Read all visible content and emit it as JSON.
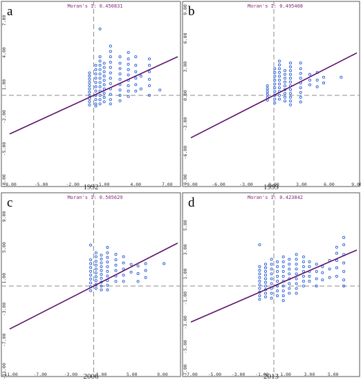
{
  "chart_data": [
    {
      "type": "scatter",
      "panel_label": "a",
      "moran_label": "Moran's I: 0.450831",
      "year": "1992",
      "x_ticks": [
        "-8.00",
        "-5.00",
        "-2.00",
        "1.00",
        "4.00",
        "7.00"
      ],
      "y_ticks": [
        "7.00",
        "4.00",
        "1.00",
        "-2.00",
        "-5.00",
        "-8.00"
      ],
      "xlim": [
        -8,
        8
      ],
      "ylim": [
        -8,
        8
      ],
      "slope": 0.450831,
      "grid": false,
      "points": [
        [
          -0.4,
          1.8
        ],
        [
          -0.4,
          1.5
        ],
        [
          -0.4,
          1.2
        ],
        [
          -0.4,
          0.9
        ],
        [
          -0.4,
          0.6
        ],
        [
          -0.4,
          0.3
        ],
        [
          -0.4,
          0.0
        ],
        [
          -0.4,
          -0.3
        ],
        [
          -0.4,
          -0.6
        ],
        [
          -0.4,
          2.1
        ],
        [
          -0.4,
          -0.9
        ],
        [
          0.2,
          2.8
        ],
        [
          0.2,
          2.4
        ],
        [
          0.2,
          2.0
        ],
        [
          0.2,
          1.6
        ],
        [
          0.2,
          1.2
        ],
        [
          0.2,
          0.8
        ],
        [
          0.2,
          0.4
        ],
        [
          0.2,
          0.0
        ],
        [
          0.2,
          -0.4
        ],
        [
          0.2,
          -0.8
        ],
        [
          0.2,
          -1.0
        ],
        [
          0.6,
          6.2
        ],
        [
          0.6,
          3.6
        ],
        [
          0.6,
          3.2
        ],
        [
          0.6,
          2.8
        ],
        [
          0.6,
          2.4
        ],
        [
          0.6,
          2.0
        ],
        [
          0.6,
          1.6
        ],
        [
          0.6,
          1.2
        ],
        [
          0.6,
          0.8
        ],
        [
          0.6,
          0.4
        ],
        [
          0.6,
          0.0
        ],
        [
          0.6,
          -0.4
        ],
        [
          0.6,
          -0.8
        ],
        [
          1.0,
          3.0
        ],
        [
          1.0,
          2.6
        ],
        [
          1.0,
          2.2
        ],
        [
          1.0,
          1.8
        ],
        [
          1.0,
          1.4
        ],
        [
          1.0,
          1.0
        ],
        [
          1.0,
          0.6
        ],
        [
          1.0,
          0.2
        ],
        [
          1.0,
          -0.2
        ],
        [
          1.0,
          -0.6
        ],
        [
          1.6,
          4.6
        ],
        [
          1.6,
          4.1
        ],
        [
          1.6,
          3.6
        ],
        [
          1.6,
          3.1
        ],
        [
          1.6,
          2.6
        ],
        [
          1.6,
          2.1
        ],
        [
          1.6,
          1.6
        ],
        [
          1.6,
          1.1
        ],
        [
          1.6,
          0.6
        ],
        [
          1.6,
          0.1
        ],
        [
          1.6,
          -0.4
        ],
        [
          1.6,
          -0.8
        ],
        [
          2.5,
          3.6
        ],
        [
          2.5,
          3.0
        ],
        [
          2.5,
          2.5
        ],
        [
          2.5,
          2.0
        ],
        [
          2.5,
          1.5
        ],
        [
          2.5,
          1.0
        ],
        [
          2.5,
          0.5
        ],
        [
          2.5,
          0.0
        ],
        [
          2.5,
          -0.5
        ],
        [
          3.3,
          4.0
        ],
        [
          3.3,
          3.4
        ],
        [
          3.3,
          2.9
        ],
        [
          3.3,
          2.4
        ],
        [
          3.3,
          1.9
        ],
        [
          3.3,
          1.4
        ],
        [
          3.3,
          0.9
        ],
        [
          3.3,
          0.4
        ],
        [
          3.3,
          -0.1
        ],
        [
          4.0,
          3.6
        ],
        [
          4.0,
          2.8
        ],
        [
          4.0,
          2.2
        ],
        [
          4.0,
          1.6
        ],
        [
          4.0,
          1.0
        ],
        [
          4.0,
          0.4
        ],
        [
          4.5,
          1.8
        ],
        [
          4.5,
          0.6
        ],
        [
          5.3,
          3.4
        ],
        [
          5.3,
          2.8
        ],
        [
          5.3,
          2.2
        ],
        [
          5.3,
          1.5
        ],
        [
          5.3,
          0.0
        ],
        [
          5.3,
          0.9
        ],
        [
          6.3,
          0.5
        ]
      ]
    },
    {
      "type": "scatter",
      "panel_label": "b",
      "moran_label": "Moran's I: 0.495408",
      "year": "1999",
      "x_ticks": [
        "-9.00",
        "-6.00",
        "-3.00",
        "0.00",
        "3.00",
        "6.00",
        "9.00"
      ],
      "y_ticks": [
        "9.00",
        "6.00",
        "3.00",
        "0.00",
        "-3.00",
        "-6.00",
        "-9.00"
      ],
      "xlim": [
        -9,
        9
      ],
      "ylim": [
        -9,
        9
      ],
      "slope": 0.495408,
      "grid": false,
      "points": [
        [
          -0.7,
          1.0
        ],
        [
          -0.7,
          0.7
        ],
        [
          -0.7,
          0.4
        ],
        [
          -0.7,
          0.1
        ],
        [
          -0.7,
          -0.2
        ],
        [
          -0.7,
          -0.5
        ],
        [
          0.1,
          2.8
        ],
        [
          0.1,
          2.4
        ],
        [
          0.1,
          2.0
        ],
        [
          0.1,
          1.6
        ],
        [
          0.1,
          1.2
        ],
        [
          0.1,
          0.8
        ],
        [
          0.1,
          0.4
        ],
        [
          0.1,
          0.0
        ],
        [
          0.1,
          -0.4
        ],
        [
          0.1,
          -0.8
        ],
        [
          0.6,
          3.6
        ],
        [
          0.6,
          3.2
        ],
        [
          0.6,
          2.8
        ],
        [
          0.6,
          2.4
        ],
        [
          0.6,
          2.0
        ],
        [
          0.6,
          1.6
        ],
        [
          0.6,
          1.2
        ],
        [
          0.6,
          0.8
        ],
        [
          0.6,
          0.4
        ],
        [
          0.6,
          0.0
        ],
        [
          0.6,
          -0.4
        ],
        [
          1.2,
          2.6
        ],
        [
          1.2,
          2.2
        ],
        [
          1.2,
          1.8
        ],
        [
          1.2,
          1.4
        ],
        [
          1.2,
          1.0
        ],
        [
          1.2,
          0.6
        ],
        [
          1.2,
          0.2
        ],
        [
          1.2,
          -0.2
        ],
        [
          1.2,
          -0.6
        ],
        [
          1.8,
          3.4
        ],
        [
          1.8,
          3.0
        ],
        [
          1.8,
          2.6
        ],
        [
          1.8,
          2.2
        ],
        [
          1.8,
          1.8
        ],
        [
          1.8,
          1.4
        ],
        [
          1.8,
          1.0
        ],
        [
          1.8,
          0.6
        ],
        [
          1.8,
          0.2
        ],
        [
          1.8,
          -0.2
        ],
        [
          1.8,
          -0.6
        ],
        [
          1.8,
          -1.0
        ],
        [
          2.9,
          3.4
        ],
        [
          2.9,
          2.8
        ],
        [
          2.9,
          2.3
        ],
        [
          2.9,
          1.8
        ],
        [
          2.9,
          1.3
        ],
        [
          2.9,
          0.8
        ],
        [
          2.9,
          0.3
        ],
        [
          2.9,
          -0.2
        ],
        [
          2.9,
          -0.7
        ],
        [
          3.9,
          2.2
        ],
        [
          3.9,
          1.6
        ],
        [
          3.9,
          1.1
        ],
        [
          4.7,
          2.4
        ],
        [
          4.7,
          1.6
        ],
        [
          4.7,
          0.9
        ],
        [
          5.4,
          1.9
        ],
        [
          5.4,
          1.3
        ],
        [
          7.3,
          1.9
        ]
      ]
    },
    {
      "type": "scatter",
      "panel_label": "c",
      "moran_label": "Moran's I: 0.505629",
      "year": "2006",
      "x_ticks": [
        "-11.00",
        "-7.00",
        "-3.00",
        "1.00",
        "5.00",
        "9.00"
      ],
      "y_ticks": [
        "9.00",
        "5.00",
        "1.00",
        "-3.00",
        "-7.00",
        "-11.00"
      ],
      "xlim": [
        -11,
        11
      ],
      "ylim": [
        -11,
        11
      ],
      "slope": 0.505629,
      "grid": false,
      "points": [
        [
          -0.4,
          5.3
        ],
        [
          -0.4,
          3.4
        ],
        [
          -0.4,
          2.9
        ],
        [
          -0.4,
          2.4
        ],
        [
          -0.4,
          1.9
        ],
        [
          -0.4,
          1.4
        ],
        [
          -0.4,
          0.9
        ],
        [
          -0.4,
          0.4
        ],
        [
          -0.4,
          -0.1
        ],
        [
          -0.4,
          -0.6
        ],
        [
          0.3,
          4.3
        ],
        [
          0.3,
          3.8
        ],
        [
          0.3,
          3.2
        ],
        [
          0.3,
          2.7
        ],
        [
          0.3,
          2.2
        ],
        [
          0.3,
          1.7
        ],
        [
          0.3,
          1.2
        ],
        [
          0.3,
          0.7
        ],
        [
          0.3,
          0.2
        ],
        [
          0.3,
          -0.3
        ],
        [
          1.0,
          4.0
        ],
        [
          1.0,
          3.5
        ],
        [
          1.0,
          3.0
        ],
        [
          1.0,
          2.5
        ],
        [
          1.0,
          2.0
        ],
        [
          1.0,
          1.5
        ],
        [
          1.0,
          1.0
        ],
        [
          1.0,
          0.5
        ],
        [
          1.0,
          0.0
        ],
        [
          1.0,
          -0.5
        ],
        [
          1.8,
          5.0
        ],
        [
          1.8,
          4.3
        ],
        [
          1.8,
          3.7
        ],
        [
          1.8,
          3.1
        ],
        [
          1.8,
          2.5
        ],
        [
          1.8,
          1.9
        ],
        [
          1.8,
          1.3
        ],
        [
          1.8,
          0.7
        ],
        [
          1.8,
          0.1
        ],
        [
          1.8,
          -0.5
        ],
        [
          2.9,
          4.1
        ],
        [
          2.9,
          3.4
        ],
        [
          2.9,
          2.7
        ],
        [
          2.9,
          2.0
        ],
        [
          2.9,
          1.3
        ],
        [
          2.9,
          0.6
        ],
        [
          3.9,
          3.8
        ],
        [
          3.9,
          3.0
        ],
        [
          3.9,
          2.2
        ],
        [
          3.9,
          1.4
        ],
        [
          3.9,
          0.6
        ],
        [
          4.9,
          2.8
        ],
        [
          4.9,
          1.8
        ],
        [
          5.8,
          2.6
        ],
        [
          5.8,
          1.6
        ],
        [
          5.8,
          0.6
        ],
        [
          6.8,
          2.9
        ],
        [
          6.8,
          2.0
        ],
        [
          6.8,
          1.1
        ],
        [
          9.2,
          2.9
        ]
      ]
    },
    {
      "type": "scatter",
      "panel_label": "d",
      "moran_label": "Moran's I: 0.423842",
      "year": "2013",
      "x_ticks": [
        "-7.00",
        "-5.00",
        "-3.00",
        "-1.00",
        "1.00",
        "3.00",
        "5.00"
      ],
      "y_ticks": [
        "5.00",
        "3.00",
        "1.00",
        "-1.00",
        "-3.00",
        "-5.00",
        "-7.00"
      ],
      "xlim": [
        -7,
        7
      ],
      "ylim": [
        -7,
        7
      ],
      "slope": 0.423842,
      "grid": false,
      "points": [
        [
          -1.2,
          3.4
        ],
        [
          -1.2,
          1.6
        ],
        [
          -1.2,
          1.3
        ],
        [
          -1.2,
          1.0
        ],
        [
          -1.2,
          0.7
        ],
        [
          -1.2,
          0.4
        ],
        [
          -1.2,
          0.1
        ],
        [
          -1.2,
          -0.2
        ],
        [
          -1.2,
          -0.5
        ],
        [
          -1.2,
          -0.8
        ],
        [
          -1.2,
          -1.1
        ],
        [
          -0.7,
          1.8
        ],
        [
          -0.7,
          1.5
        ],
        [
          -0.7,
          1.2
        ],
        [
          -0.7,
          0.9
        ],
        [
          -0.7,
          0.6
        ],
        [
          -0.7,
          0.3
        ],
        [
          -0.7,
          0.0
        ],
        [
          -0.7,
          -0.3
        ],
        [
          -0.7,
          -0.6
        ],
        [
          -0.7,
          -0.9
        ],
        [
          -0.2,
          2.2
        ],
        [
          -0.2,
          1.8
        ],
        [
          -0.2,
          1.4
        ],
        [
          -0.2,
          1.0
        ],
        [
          -0.2,
          0.6
        ],
        [
          -0.2,
          0.2
        ],
        [
          -0.2,
          -0.2
        ],
        [
          -0.2,
          -0.6
        ],
        [
          -0.2,
          -1.0
        ],
        [
          0.3,
          2.0
        ],
        [
          0.3,
          1.6
        ],
        [
          0.3,
          1.2
        ],
        [
          0.3,
          0.8
        ],
        [
          0.3,
          0.4
        ],
        [
          0.3,
          0.0
        ],
        [
          0.3,
          -0.4
        ],
        [
          0.3,
          -0.8
        ],
        [
          0.8,
          2.4
        ],
        [
          0.8,
          2.0
        ],
        [
          0.8,
          1.6
        ],
        [
          0.8,
          1.2
        ],
        [
          0.8,
          0.8
        ],
        [
          0.8,
          0.4
        ],
        [
          0.8,
          0.0
        ],
        [
          0.8,
          -0.4
        ],
        [
          0.8,
          -0.8
        ],
        [
          0.8,
          -1.2
        ],
        [
          1.3,
          2.2
        ],
        [
          1.3,
          1.8
        ],
        [
          1.3,
          1.4
        ],
        [
          1.3,
          1.0
        ],
        [
          1.3,
          0.6
        ],
        [
          1.3,
          0.2
        ],
        [
          1.3,
          -0.2
        ],
        [
          1.3,
          -0.6
        ],
        [
          1.9,
          2.6
        ],
        [
          1.9,
          2.2
        ],
        [
          1.9,
          1.8
        ],
        [
          1.9,
          1.4
        ],
        [
          1.9,
          1.0
        ],
        [
          1.9,
          0.6
        ],
        [
          1.9,
          0.2
        ],
        [
          1.9,
          -0.2
        ],
        [
          1.9,
          -0.6
        ],
        [
          2.5,
          2.4
        ],
        [
          2.5,
          2.0
        ],
        [
          2.5,
          1.6
        ],
        [
          2.5,
          1.2
        ],
        [
          2.5,
          0.8
        ],
        [
          2.5,
          0.4
        ],
        [
          2.5,
          0.0
        ],
        [
          3.0,
          2.0
        ],
        [
          3.0,
          1.6
        ],
        [
          3.0,
          1.2
        ],
        [
          3.0,
          0.8
        ],
        [
          3.0,
          0.4
        ],
        [
          3.6,
          1.8
        ],
        [
          3.6,
          1.2
        ],
        [
          3.6,
          0.6
        ],
        [
          3.6,
          0.0
        ],
        [
          4.1,
          1.6
        ],
        [
          4.1,
          1.1
        ],
        [
          4.1,
          0.5
        ],
        [
          4.7,
          2.1
        ],
        [
          4.7,
          1.4
        ],
        [
          4.7,
          0.7
        ],
        [
          5.3,
          3.2
        ],
        [
          5.3,
          2.7
        ],
        [
          5.3,
          2.1
        ],
        [
          5.3,
          1.5
        ],
        [
          5.3,
          0.8
        ],
        [
          5.9,
          4.0
        ],
        [
          5.9,
          3.4
        ],
        [
          5.9,
          2.6
        ],
        [
          5.9,
          1.9
        ],
        [
          5.9,
          1.2
        ],
        [
          5.9,
          0.5
        ],
        [
          5.9,
          0.0
        ]
      ]
    }
  ]
}
